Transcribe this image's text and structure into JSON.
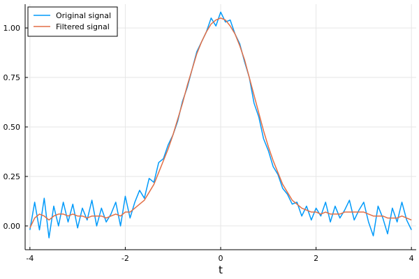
{
  "chart_data": {
    "type": "line",
    "title": "",
    "xlabel": "t",
    "ylabel": "",
    "xlim": [
      -4.1,
      4.1
    ],
    "ylim": [
      -0.12,
      1.12
    ],
    "x_ticks": [
      -4,
      -2,
      0,
      2,
      4
    ],
    "x_tick_labels": [
      "-4",
      "-2",
      "0",
      "2",
      "4"
    ],
    "y_ticks": [
      0.0,
      0.25,
      0.5,
      0.75,
      1.0
    ],
    "y_tick_labels": [
      "0.00",
      "0.25",
      "0.50",
      "0.75",
      "1.00"
    ],
    "grid": true,
    "legend_position": "top-left",
    "series": [
      {
        "name": "Original signal",
        "color": "#009AFA",
        "x": [
          -4.0,
          -3.9,
          -3.8,
          -3.7,
          -3.6,
          -3.5,
          -3.4,
          -3.3,
          -3.2,
          -3.1,
          -3.0,
          -2.9,
          -2.8,
          -2.7,
          -2.6,
          -2.5,
          -2.4,
          -2.3,
          -2.2,
          -2.1,
          -2.0,
          -1.9,
          -1.8,
          -1.7,
          -1.6,
          -1.5,
          -1.4,
          -1.3,
          -1.2,
          -1.1,
          -1.0,
          -0.9,
          -0.8,
          -0.7,
          -0.6,
          -0.5,
          -0.4,
          -0.3,
          -0.2,
          -0.1,
          0.0,
          0.1,
          0.2,
          0.3,
          0.4,
          0.5,
          0.6,
          0.7,
          0.8,
          0.9,
          1.0,
          1.1,
          1.2,
          1.3,
          1.4,
          1.5,
          1.6,
          1.7,
          1.8,
          1.9,
          2.0,
          2.1,
          2.2,
          2.3,
          2.4,
          2.5,
          2.6,
          2.7,
          2.8,
          2.9,
          3.0,
          3.1,
          3.2,
          3.3,
          3.4,
          3.5,
          3.6,
          3.7,
          3.8,
          3.9,
          4.0
        ],
        "y": [
          -0.02,
          0.12,
          -0.02,
          0.14,
          -0.06,
          0.1,
          0.0,
          0.12,
          0.02,
          0.11,
          -0.01,
          0.09,
          0.03,
          0.13,
          0.0,
          0.09,
          0.02,
          0.06,
          0.12,
          0.0,
          0.15,
          0.04,
          0.12,
          0.18,
          0.14,
          0.24,
          0.22,
          0.32,
          0.34,
          0.41,
          0.46,
          0.53,
          0.63,
          0.7,
          0.79,
          0.88,
          0.93,
          0.98,
          1.05,
          1.01,
          1.08,
          1.03,
          1.04,
          0.97,
          0.92,
          0.83,
          0.75,
          0.62,
          0.55,
          0.44,
          0.38,
          0.3,
          0.26,
          0.19,
          0.16,
          0.11,
          0.12,
          0.05,
          0.1,
          0.03,
          0.09,
          0.05,
          0.12,
          0.02,
          0.1,
          0.04,
          0.08,
          0.13,
          0.03,
          0.08,
          0.12,
          0.02,
          -0.05,
          0.1,
          0.04,
          -0.04,
          0.09,
          0.02,
          0.12,
          0.03,
          -0.02
        ]
      },
      {
        "name": "Filtered signal",
        "color": "#E26F46",
        "x": [
          -4.0,
          -3.9,
          -3.8,
          -3.7,
          -3.6,
          -3.5,
          -3.4,
          -3.3,
          -3.2,
          -3.1,
          -3.0,
          -2.9,
          -2.8,
          -2.7,
          -2.6,
          -2.5,
          -2.4,
          -2.3,
          -2.2,
          -2.1,
          -2.0,
          -1.9,
          -1.8,
          -1.7,
          -1.6,
          -1.5,
          -1.4,
          -1.3,
          -1.2,
          -1.1,
          -1.0,
          -0.9,
          -0.8,
          -0.7,
          -0.6,
          -0.5,
          -0.4,
          -0.3,
          -0.2,
          -0.1,
          0.0,
          0.1,
          0.2,
          0.3,
          0.4,
          0.5,
          0.6,
          0.7,
          0.8,
          0.9,
          1.0,
          1.1,
          1.2,
          1.3,
          1.4,
          1.5,
          1.6,
          1.7,
          1.8,
          1.9,
          2.0,
          2.1,
          2.2,
          2.3,
          2.4,
          2.5,
          2.6,
          2.7,
          2.8,
          2.9,
          3.0,
          3.1,
          3.2,
          3.3,
          3.4,
          3.5,
          3.6,
          3.7,
          3.8,
          3.9,
          4.0
        ],
        "y": [
          -0.01,
          0.04,
          0.06,
          0.05,
          0.03,
          0.05,
          0.06,
          0.06,
          0.05,
          0.06,
          0.05,
          0.05,
          0.04,
          0.05,
          0.05,
          0.05,
          0.04,
          0.05,
          0.06,
          0.05,
          0.07,
          0.07,
          0.09,
          0.11,
          0.13,
          0.17,
          0.21,
          0.27,
          0.33,
          0.39,
          0.46,
          0.54,
          0.62,
          0.71,
          0.79,
          0.87,
          0.93,
          0.98,
          1.02,
          1.04,
          1.05,
          1.04,
          1.01,
          0.97,
          0.91,
          0.84,
          0.75,
          0.66,
          0.57,
          0.48,
          0.4,
          0.33,
          0.27,
          0.21,
          0.17,
          0.13,
          0.11,
          0.09,
          0.08,
          0.07,
          0.07,
          0.06,
          0.07,
          0.06,
          0.06,
          0.06,
          0.07,
          0.07,
          0.07,
          0.07,
          0.07,
          0.06,
          0.05,
          0.05,
          0.05,
          0.04,
          0.04,
          0.04,
          0.05,
          0.04,
          0.03
        ]
      }
    ]
  }
}
